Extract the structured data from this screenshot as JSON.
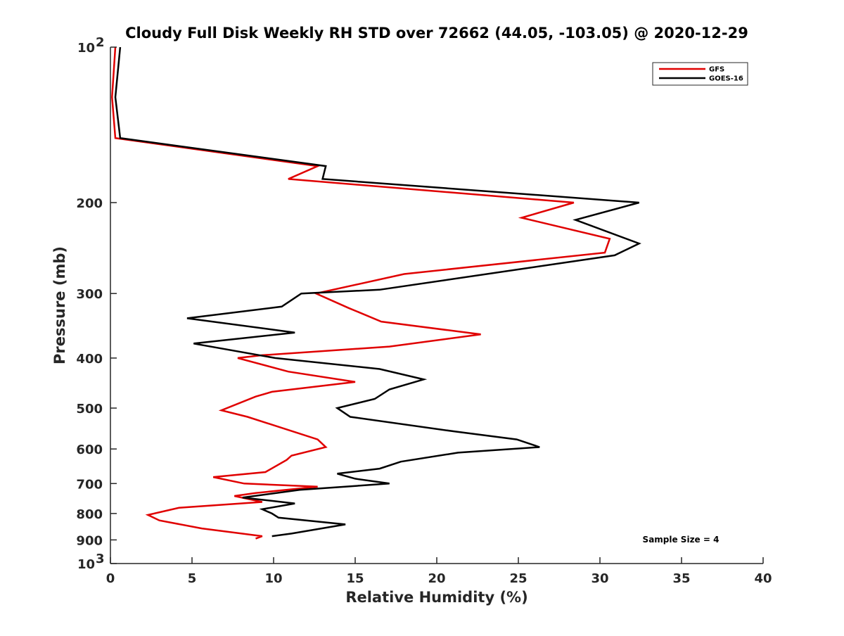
{
  "chart_data": {
    "type": "line",
    "title": "Cloudy Full Disk Weekly RH STD over 72662 (44.05, -103.05) @ 2020-12-29",
    "xlabel": "Relative Humidity (%)",
    "ylabel": "Pressure (mb)",
    "xlim": [
      0,
      40
    ],
    "ylim": [
      100,
      1000
    ],
    "y_scale": "log",
    "y_reversed": true,
    "grid": false,
    "legend_position": "top-right",
    "x_ticks": [
      {
        "value": 0,
        "label": "0"
      },
      {
        "value": 5,
        "label": "5"
      },
      {
        "value": 10,
        "label": "10"
      },
      {
        "value": 15,
        "label": "15"
      },
      {
        "value": 20,
        "label": "20"
      },
      {
        "value": 25,
        "label": "25"
      },
      {
        "value": 30,
        "label": "30"
      },
      {
        "value": 35,
        "label": "35"
      },
      {
        "value": 40,
        "label": "40"
      }
    ],
    "y_ticks": [
      {
        "value": 100,
        "base": "10",
        "exp": "2"
      },
      {
        "value": 200,
        "label": "200"
      },
      {
        "value": 300,
        "label": "300"
      },
      {
        "value": 400,
        "label": "400"
      },
      {
        "value": 500,
        "label": "500"
      },
      {
        "value": 600,
        "label": "600"
      },
      {
        "value": 700,
        "label": "700"
      },
      {
        "value": 800,
        "label": "800"
      },
      {
        "value": 900,
        "label": "900"
      },
      {
        "value": 1000,
        "base": "10",
        "exp": "3"
      }
    ],
    "annotations": [
      "Sample Size = 4"
    ],
    "series": [
      {
        "name": "GFS",
        "color": "#e00000",
        "points": [
          [
            0.3,
            100
          ],
          [
            0.1,
            125
          ],
          [
            0.3,
            150
          ],
          [
            12.7,
            170
          ],
          [
            10.9,
            180
          ],
          [
            28.4,
            200
          ],
          [
            25.2,
            214
          ],
          [
            30.6,
            235
          ],
          [
            30.3,
            250
          ],
          [
            18.0,
            275
          ],
          [
            12.6,
            300
          ],
          [
            14.6,
            320
          ],
          [
            16.6,
            340
          ],
          [
            22.7,
            360
          ],
          [
            17.1,
            380
          ],
          [
            9.3,
            395
          ],
          [
            7.8,
            400
          ],
          [
            10.9,
            425
          ],
          [
            15.0,
            445
          ],
          [
            9.9,
            465
          ],
          [
            8.9,
            475
          ],
          [
            6.8,
            505
          ],
          [
            8.4,
            520
          ],
          [
            12.7,
            575
          ],
          [
            13.2,
            595
          ],
          [
            11.1,
            618
          ],
          [
            10.8,
            630
          ],
          [
            9.5,
            665
          ],
          [
            6.3,
            680
          ],
          [
            8.2,
            700
          ],
          [
            12.7,
            710
          ],
          [
            8.9,
            730
          ],
          [
            7.6,
            740
          ],
          [
            9.3,
            760
          ],
          [
            4.2,
            780
          ],
          [
            2.3,
            805
          ],
          [
            3.0,
            825
          ],
          [
            5.6,
            855
          ],
          [
            9.3,
            885
          ],
          [
            8.9,
            895
          ]
        ]
      },
      {
        "name": "GOES-16",
        "color": "#000000",
        "points": [
          [
            0.6,
            100
          ],
          [
            0.3,
            125
          ],
          [
            0.6,
            150
          ],
          [
            13.2,
            170
          ],
          [
            13.0,
            180
          ],
          [
            32.4,
            200
          ],
          [
            28.5,
            216
          ],
          [
            32.4,
            240
          ],
          [
            30.9,
            253
          ],
          [
            16.5,
            295
          ],
          [
            11.7,
            300
          ],
          [
            10.5,
            318
          ],
          [
            4.7,
            335
          ],
          [
            11.3,
            357
          ],
          [
            5.1,
            375
          ],
          [
            10.1,
            400
          ],
          [
            16.5,
            420
          ],
          [
            19.2,
            440
          ],
          [
            17.1,
            460
          ],
          [
            16.2,
            480
          ],
          [
            13.9,
            500
          ],
          [
            14.7,
            520
          ],
          [
            21.1,
            555
          ],
          [
            24.9,
            575
          ],
          [
            26.3,
            595
          ],
          [
            21.3,
            610
          ],
          [
            17.8,
            635
          ],
          [
            16.5,
            655
          ],
          [
            13.9,
            670
          ],
          [
            15.0,
            685
          ],
          [
            17.1,
            700
          ],
          [
            11.6,
            720
          ],
          [
            8.1,
            745
          ],
          [
            11.3,
            765
          ],
          [
            9.3,
            785
          ],
          [
            9.9,
            800
          ],
          [
            10.3,
            815
          ],
          [
            14.4,
            840
          ],
          [
            11.1,
            875
          ],
          [
            9.9,
            885
          ]
        ]
      }
    ]
  }
}
